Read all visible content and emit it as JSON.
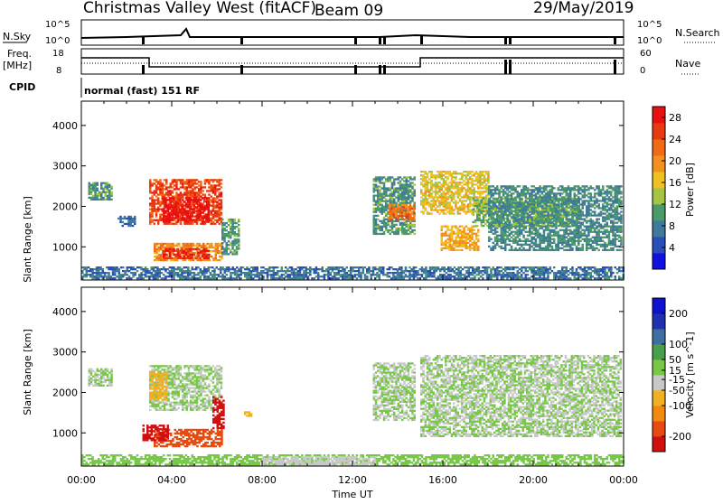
{
  "header": {
    "radar": "Christmas Valley West (fitACF)",
    "beam": "Beam 09",
    "date": "29/May/2019"
  },
  "strips": {
    "nsky_label": "N.Sky",
    "nsky_ticks": [
      "10^5",
      "10^0"
    ],
    "nsearch_label": "N.Search",
    "nsearch_ticks": [
      "10^5",
      "10^0"
    ],
    "freq_label_1": "Freq.",
    "freq_label_2": "[MHz]",
    "freq_ticks": [
      "18",
      "8"
    ],
    "nave_label": "Nave",
    "nave_ticks": [
      "60",
      "0"
    ],
    "cpid_label": "CPID",
    "cpid_text": "normal (fast) 151 RF"
  },
  "colors": {
    "power_scale": [
      "#1010e0",
      "#2a4fb8",
      "#3f7a9a",
      "#4a9a6a",
      "#a5c444",
      "#f0c020",
      "#f29020",
      "#f26a15",
      "#e83a10",
      "#e81010"
    ],
    "velocity_scale": [
      "#d01010",
      "#e84a10",
      "#f28a10",
      "#f0b020",
      "#c8c8c8",
      "#78c848",
      "#4aa04a",
      "#3f6fa0",
      "#2030b0",
      "#1010d0"
    ]
  },
  "chart_data": [
    {
      "type": "heatmap",
      "title": "Power",
      "ylabel": "Slant Range [km]",
      "xlabel": "Time UT",
      "x_ticks": [
        "00:00",
        "04:00",
        "08:00",
        "12:00",
        "16:00",
        "20:00",
        "00:00"
      ],
      "xlim_hours": [
        0,
        24
      ],
      "y_ticks": [
        1000,
        2000,
        3000,
        4000
      ],
      "ylim_km": [
        180,
        4600
      ],
      "colorbar": {
        "label": "Power [dB]",
        "ticks": [
          4,
          8,
          12,
          16,
          20,
          24,
          28
        ],
        "range": [
          0,
          30
        ]
      },
      "regions": [
        {
          "t": [
            0.3,
            1.3
          ],
          "r": [
            2150,
            2600
          ],
          "value": 10
        },
        {
          "t": [
            1.6,
            2.4
          ],
          "r": [
            1500,
            1750
          ],
          "value": 6
        },
        {
          "t": [
            3.0,
            6.2
          ],
          "r": [
            1550,
            2650
          ],
          "value": 25
        },
        {
          "t": [
            3.6,
            5.6
          ],
          "r": [
            1600,
            2200
          ],
          "value": 29
        },
        {
          "t": [
            3.2,
            6.2
          ],
          "r": [
            650,
            1100
          ],
          "value": 20
        },
        {
          "t": [
            3.6,
            5.6
          ],
          "r": [
            700,
            950
          ],
          "value": 27
        },
        {
          "t": [
            6.2,
            7.0
          ],
          "r": [
            800,
            1700
          ],
          "value": 10
        },
        {
          "t": [
            12.9,
            14.7
          ],
          "r": [
            1300,
            2700
          ],
          "value": 10
        },
        {
          "t": [
            13.6,
            14.7
          ],
          "r": [
            1650,
            2050
          ],
          "value": 22
        },
        {
          "t": [
            15.0,
            18.0
          ],
          "r": [
            1800,
            2850
          ],
          "value": 16
        },
        {
          "t": [
            15.9,
            17.6
          ],
          "r": [
            900,
            1500
          ],
          "value": 18
        },
        {
          "t": [
            17.3,
            22.0
          ],
          "r": [
            1500,
            2200
          ],
          "value": 12
        },
        {
          "t": [
            18.0,
            23.9
          ],
          "r": [
            900,
            2500
          ],
          "value": 9
        },
        {
          "t": [
            0.0,
            24.0
          ],
          "r": [
            200,
            500
          ],
          "value": 7
        }
      ]
    },
    {
      "type": "heatmap",
      "title": "Velocity",
      "ylabel": "Slant Range [km]",
      "xlabel": "Time UT",
      "x_ticks": [
        "00:00",
        "04:00",
        "08:00",
        "12:00",
        "16:00",
        "20:00",
        "00:00"
      ],
      "xlim_hours": [
        0,
        24
      ],
      "y_ticks": [
        1000,
        2000,
        3000,
        4000
      ],
      "ylim_km": [
        180,
        4600
      ],
      "colorbar": {
        "label": "Velocity [m s^-1]",
        "ticks": [
          -200,
          -100,
          -50,
          -15,
          15,
          50,
          100,
          200
        ],
        "range": [
          -250,
          250
        ]
      },
      "regions": [
        {
          "t": [
            0.3,
            1.3
          ],
          "r": [
            2150,
            2600
          ],
          "value": 0
        },
        {
          "t": [
            3.0,
            6.2
          ],
          "r": [
            1550,
            2650
          ],
          "value": 0
        },
        {
          "t": [
            3.0,
            3.8
          ],
          "r": [
            1800,
            2500
          ],
          "value": -60
        },
        {
          "t": [
            5.8,
            6.3
          ],
          "r": [
            1100,
            1900
          ],
          "value": -230
        },
        {
          "t": [
            3.2,
            6.2
          ],
          "r": [
            650,
            1100
          ],
          "value": -180
        },
        {
          "t": [
            2.7,
            3.8
          ],
          "r": [
            800,
            1200
          ],
          "value": -230
        },
        {
          "t": [
            7.2,
            7.5
          ],
          "r": [
            1400,
            1500
          ],
          "value": -80
        },
        {
          "t": [
            12.9,
            14.7
          ],
          "r": [
            1300,
            2700
          ],
          "value": 0
        },
        {
          "t": [
            15.0,
            23.9
          ],
          "r": [
            900,
            2900
          ],
          "value": 0
        },
        {
          "t": [
            0.0,
            24.0
          ],
          "r": [
            200,
            450
          ],
          "value": 30
        },
        {
          "t": [
            8.0,
            13.0
          ],
          "r": [
            200,
            400
          ],
          "value": -40
        }
      ]
    }
  ]
}
